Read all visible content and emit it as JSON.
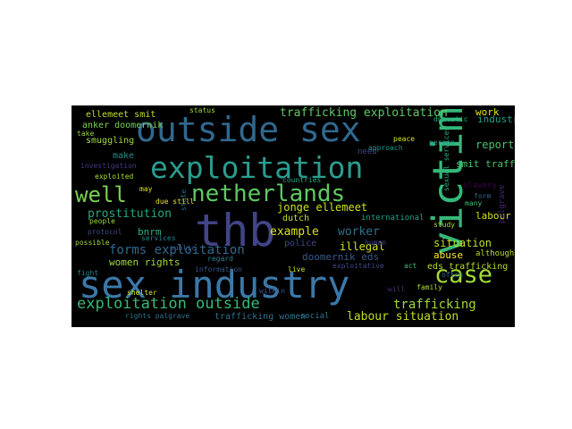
{
  "colors": {
    "background": "#000000",
    "page": "#ffffff"
  },
  "words": [
    {
      "text": "sex industry",
      "color": "#3b78a8"
    },
    {
      "text": "thb",
      "color": "#414487"
    },
    {
      "text": "victim",
      "color": "#35b779"
    },
    {
      "text": "outside sex",
      "color": "#31688e"
    },
    {
      "text": "exploitation",
      "color": "#2a9d8f"
    },
    {
      "text": "netherlands",
      "color": "#5ec962"
    },
    {
      "text": "well",
      "color": "#7ad151"
    },
    {
      "text": "case",
      "color": "#a5db36"
    },
    {
      "text": "exploitation outside",
      "color": "#38b977"
    },
    {
      "text": "forms exploitation",
      "color": "#31688e"
    },
    {
      "text": "trafficking exploitation",
      "color": "#5ec962"
    },
    {
      "text": "prostitution",
      "color": "#22a884"
    },
    {
      "text": "trafficking",
      "color": "#9fda3a"
    },
    {
      "text": "labour situation",
      "color": "#c2df23"
    },
    {
      "text": "jonge ellemeet",
      "color": "#c9e120"
    },
    {
      "text": "example",
      "color": "#d8e219"
    },
    {
      "text": "worker",
      "color": "#2c728e"
    },
    {
      "text": "illegal",
      "color": "#d2e21b"
    },
    {
      "text": "situation",
      "color": "#bddf26"
    },
    {
      "text": "women rights",
      "color": "#a0da39"
    },
    {
      "text": "report",
      "color": "#4ac16d"
    },
    {
      "text": "industry anker",
      "color": "#1fa187"
    },
    {
      "text": "smit trafficking",
      "color": "#4ac16d"
    },
    {
      "text": "work",
      "color": "#e5e419"
    },
    {
      "text": "ellemeet smit",
      "color": "#c0df25"
    },
    {
      "text": "anker doomernik",
      "color": "#7ad151"
    },
    {
      "text": "smuggling",
      "color": "#9fda3a"
    },
    {
      "text": "make",
      "color": "#21918c"
    },
    {
      "text": "bnrm",
      "color": "#29af7f"
    },
    {
      "text": "police",
      "color": "#3e4a89"
    },
    {
      "text": "doomernik eds",
      "color": "#38598c"
    },
    {
      "text": "abuse",
      "color": "#fde725"
    },
    {
      "text": "eds trafficking",
      "color": "#b5de2b"
    },
    {
      "text": "labour",
      "color": "#d0e11c"
    },
    {
      "text": "trafficking women",
      "color": "#2d708e"
    },
    {
      "text": "dutch",
      "color": "#c5e021"
    },
    {
      "text": "slavery",
      "color": "#440154"
    },
    {
      "text": "palgrave",
      "color": "#482475"
    },
    {
      "text": "need",
      "color": "#3e4989"
    },
    {
      "text": "approach",
      "color": "#1f988b"
    },
    {
      "text": "international",
      "color": "#20a386"
    },
    {
      "text": "although",
      "color": "#b8de29"
    },
    {
      "text": "social",
      "color": "#2a788e"
    },
    {
      "text": "rights palgrave",
      "color": "#2c738e"
    },
    {
      "text": "sexual services",
      "color": "#2db27d"
    },
    {
      "text": "countries",
      "color": "#22a785"
    },
    {
      "text": "exploited",
      "color": "#a8db34"
    },
    {
      "text": "investigation",
      "color": "#453781"
    },
    {
      "text": "domestic",
      "color": "#29af7f"
    },
    {
      "text": "person",
      "color": "#1f948c"
    },
    {
      "text": "study",
      "color": "#b2dd2d"
    },
    {
      "text": "people",
      "color": "#9bd93c"
    },
    {
      "text": "protocol",
      "color": "#3e4a89"
    },
    {
      "text": "possible",
      "color": "#9dd93b"
    },
    {
      "text": "services",
      "color": "#25848e"
    },
    {
      "text": "regard",
      "color": "#25858e"
    },
    {
      "text": "live",
      "color": "#c8e020"
    },
    {
      "text": "exploitative",
      "color": "#3f4889"
    },
    {
      "text": "status",
      "color": "#a2da37"
    },
    {
      "text": "take",
      "color": "#90d743"
    },
    {
      "text": "may",
      "color": "#dde318"
    },
    {
      "text": "peace",
      "color": "#d5e21a"
    },
    {
      "text": "form",
      "color": "#34618d"
    },
    {
      "text": "many",
      "color": "#3bbb75"
    },
    {
      "text": "often",
      "color": "#2c718e"
    },
    {
      "text": "family",
      "color": "#addc30"
    },
    {
      "text": "human",
      "color": "#404688"
    },
    {
      "text": "act",
      "color": "#3dbc74"
    },
    {
      "text": "will",
      "color": "#46307e"
    },
    {
      "text": "shelter",
      "color": "#d2e21b"
    },
    {
      "text": "fight",
      "color": "#287c8e"
    },
    {
      "text": "within",
      "color": "#3a548c"
    },
    {
      "text": "state",
      "color": "#2e6e8e"
    },
    {
      "text": "public",
      "color": "#375b8d"
    },
    {
      "text": "due still",
      "color": "#ece51b"
    },
    {
      "text": "information",
      "color": "#38588c"
    }
  ]
}
